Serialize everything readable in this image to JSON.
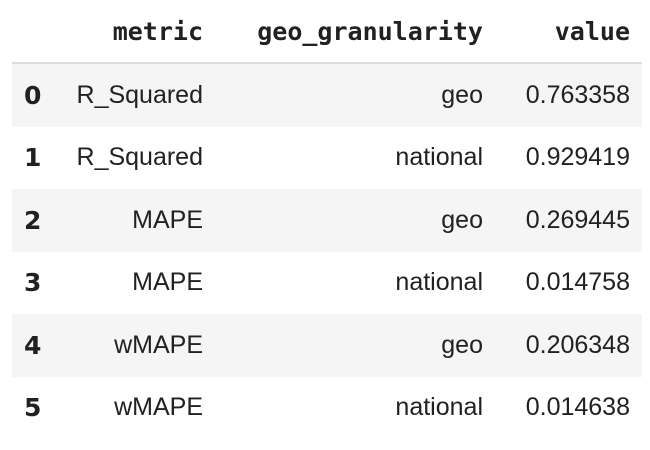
{
  "table": {
    "columns": [
      "",
      "metric",
      "geo_granularity",
      "value"
    ],
    "rows": [
      {
        "index": "0",
        "metric": "R_Squared",
        "geo_granularity": "geo",
        "value": "0.763358"
      },
      {
        "index": "1",
        "metric": "R_Squared",
        "geo_granularity": "national",
        "value": "0.929419"
      },
      {
        "index": "2",
        "metric": "MAPE",
        "geo_granularity": "geo",
        "value": "0.269445"
      },
      {
        "index": "3",
        "metric": "MAPE",
        "geo_granularity": "national",
        "value": "0.014758"
      },
      {
        "index": "4",
        "metric": "wMAPE",
        "geo_granularity": "geo",
        "value": "0.206348"
      },
      {
        "index": "5",
        "metric": "wMAPE",
        "geo_granularity": "national",
        "value": "0.014638"
      }
    ]
  },
  "colors": {
    "striped_row": "#f5f5f5",
    "header_border": "#dcdcdc",
    "text": "#212121"
  }
}
